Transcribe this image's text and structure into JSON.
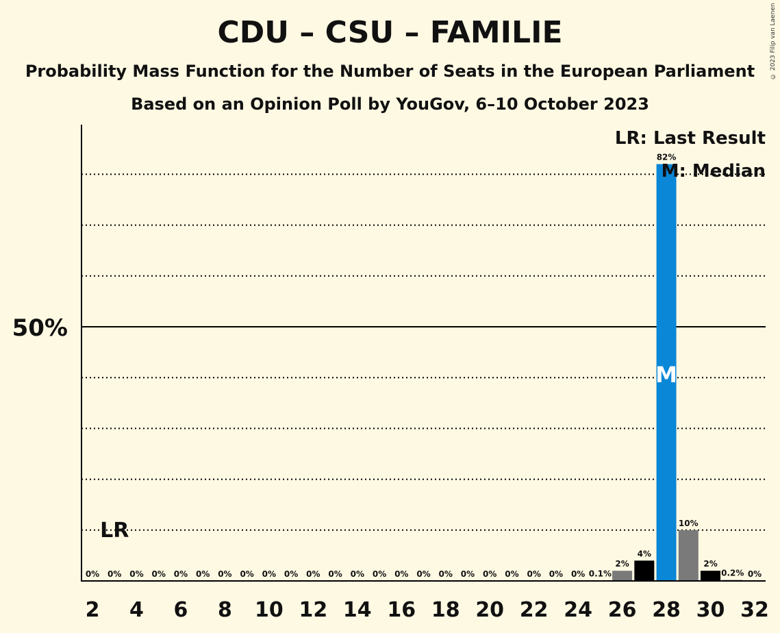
{
  "title": "CDU – CSU – FAMILIE",
  "subtitle": "Probability Mass Function for the Number of Seats in the European Parliament",
  "subtitle2": "Based on an Opinion Poll by YouGov, 6–10 October 2023",
  "copyright": "© 2023 Filip van Laenen",
  "legend": {
    "last_result": "LR: Last Result",
    "median": "M: Median"
  },
  "markers": {
    "last_result_label": "LR",
    "median_label": "M"
  },
  "colors": {
    "background": "#fef9e3",
    "median_bar": "#0a87d6",
    "black_bar": "#000000",
    "gray_bar": "#7a7a7a"
  },
  "chart_data": {
    "type": "bar",
    "x": [
      2,
      3,
      4,
      5,
      6,
      7,
      8,
      9,
      10,
      11,
      12,
      13,
      14,
      15,
      16,
      17,
      18,
      19,
      20,
      21,
      22,
      23,
      24,
      25,
      26,
      27,
      28,
      29,
      30,
      31,
      32
    ],
    "values": [
      0,
      0,
      0,
      0,
      0,
      0,
      0,
      0,
      0,
      0,
      0,
      0,
      0,
      0,
      0,
      0,
      0,
      0,
      0,
      0,
      0,
      0,
      0,
      0.1,
      2,
      4,
      82,
      10,
      2,
      0.2,
      0
    ],
    "value_labels": [
      "0%",
      "0%",
      "0%",
      "0%",
      "0%",
      "0%",
      "0%",
      "0%",
      "0%",
      "0%",
      "0%",
      "0%",
      "0%",
      "0%",
      "0%",
      "0%",
      "0%",
      "0%",
      "0%",
      "0%",
      "0%",
      "0%",
      "0%",
      "0.1%",
      "2%",
      "4%",
      "82%",
      "10%",
      "2%",
      "0.2%",
      "0%"
    ],
    "bar_colors": [
      "gray",
      "black",
      "gray",
      "black",
      "gray",
      "black",
      "gray",
      "black",
      "gray",
      "black",
      "gray",
      "black",
      "gray",
      "black",
      "gray",
      "black",
      "gray",
      "black",
      "gray",
      "black",
      "gray",
      "black",
      "gray",
      "black",
      "gray",
      "black",
      "median",
      "gray",
      "black",
      "gray",
      "black"
    ],
    "x_tick_labels": [
      "2",
      "4",
      "6",
      "8",
      "10",
      "12",
      "14",
      "16",
      "18",
      "20",
      "22",
      "24",
      "26",
      "28",
      "30",
      "32"
    ],
    "y_tick_label": "50%",
    "y_tick_value": 50,
    "ylim": [
      0,
      90
    ],
    "gridlines": [
      10,
      20,
      30,
      40,
      60,
      70,
      80
    ],
    "last_result_seat": 3,
    "median_seat": 28
  }
}
